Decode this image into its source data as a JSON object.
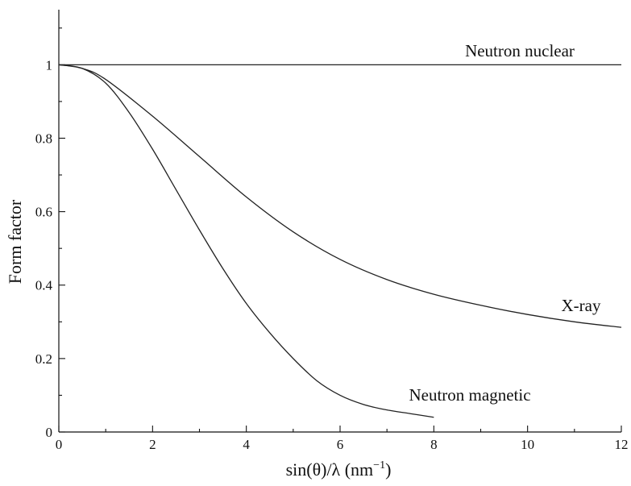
{
  "chart_data": {
    "type": "line",
    "title": "",
    "xlabel": "sin(θ)/λ (nm",
    "xlabel_superscript": "−1",
    "xlabel_suffix": ")",
    "ylabel": "Form factor",
    "xlim": [
      0,
      12
    ],
    "ylim": [
      0,
      1.15
    ],
    "grid": false,
    "x_ticks": [
      0,
      2,
      4,
      6,
      8,
      10,
      12
    ],
    "x_tick_labels": [
      "0",
      "2",
      "4",
      "6",
      "8",
      "10",
      "12"
    ],
    "y_ticks": [
      0,
      0.2,
      0.4,
      0.6,
      0.8,
      1
    ],
    "y_tick_labels": [
      "0",
      "0.2",
      "0.4",
      "0.6",
      "0.8",
      "1"
    ],
    "series": [
      {
        "name": "Neutron nuclear",
        "x": [
          0,
          12
        ],
        "y": [
          1.0,
          1.0
        ]
      },
      {
        "name": "X-ray",
        "x": [
          0,
          0.5,
          1,
          2,
          3,
          4,
          5,
          6,
          7,
          8,
          9,
          10,
          11,
          12
        ],
        "y": [
          1.0,
          0.99,
          0.96,
          0.86,
          0.75,
          0.64,
          0.545,
          0.47,
          0.415,
          0.375,
          0.345,
          0.32,
          0.3,
          0.285
        ]
      },
      {
        "name": "Neutron magnetic",
        "x": [
          0,
          0.5,
          1,
          1.5,
          2,
          2.5,
          3,
          3.5,
          4,
          4.5,
          5,
          5.5,
          6,
          6.5,
          7,
          7.5,
          8
        ],
        "y": [
          1.0,
          0.99,
          0.95,
          0.87,
          0.77,
          0.66,
          0.55,
          0.445,
          0.35,
          0.27,
          0.2,
          0.14,
          0.1,
          0.075,
          0.06,
          0.05,
          0.04
        ]
      }
    ]
  }
}
